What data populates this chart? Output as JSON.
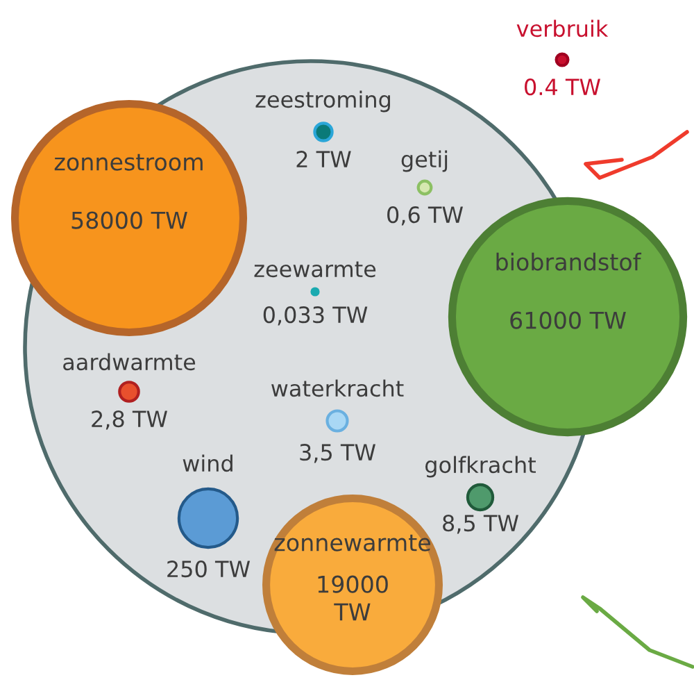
{
  "chart_data": {
    "type": "other",
    "categories": [
      "zonnestroom",
      "zeestroming",
      "getij",
      "zeewarmte",
      "biobrandstof",
      "aardwarmte",
      "waterkracht",
      "wind",
      "zonnewarmte",
      "golfkracht",
      "verbruik"
    ],
    "values": [
      58000,
      2,
      0.6,
      0.033,
      61000,
      2.8,
      3.5,
      250,
      19000,
      8.5,
      0.4
    ],
    "value_labels": [
      "58000 TW",
      "2 TW",
      "0,6 TW",
      "0,033 TW",
      "61000 TW",
      "2,8 TW",
      "3,5 TW",
      "250 TW",
      "19000 TW",
      "8,5 TW",
      "0.4 TW"
    ],
    "colors": [
      "#f7941d",
      "#0a7a78",
      "#d6e8b0",
      "#1aaab0",
      "#6aaa44",
      "#e8502d",
      "#a9d8f5",
      "#5b9bd5",
      "#f9ab3c",
      "#4f9a6c",
      "#c8102e"
    ]
  }
}
